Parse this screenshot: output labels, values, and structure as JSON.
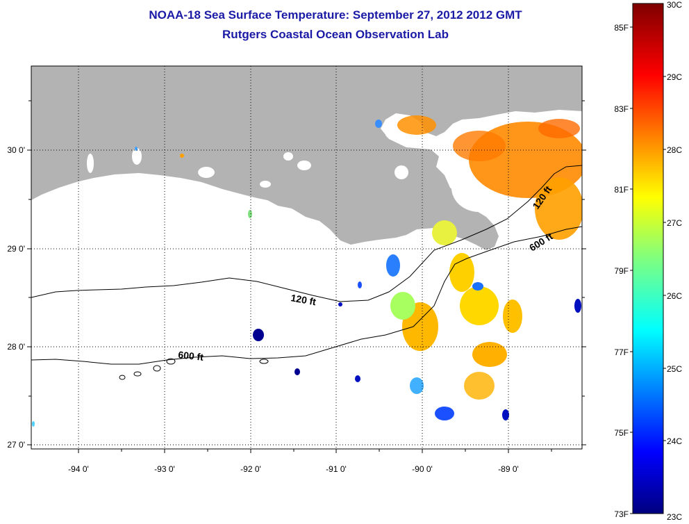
{
  "titles": {
    "line1": "NOAA-18 Sea Surface Temperature:  September 27, 2012 2012 GMT",
    "line2": "Rutgers Coastal Ocean Observation Lab"
  },
  "map": {
    "lat_labels": [
      "30 0'",
      "29 0'",
      "28 0'",
      "27 0'"
    ],
    "lon_labels": [
      "-94 0'",
      "-93 0'",
      "-92 0'",
      "-91 0'",
      "-90 0'",
      "-89 0'"
    ],
    "contours": {
      "shallow_label": "120 ft",
      "deep_label": "600 ft"
    },
    "colors": {
      "land": "#b3b3b3",
      "ocean_nodata": "#ffffff"
    }
  },
  "colorbar": {
    "fahrenheit": [
      "85F",
      "83F",
      "81F",
      "79F",
      "77F",
      "75F",
      "73F"
    ],
    "celsius": [
      "30C",
      "29C",
      "28C",
      "27C",
      "26C",
      "25C",
      "24C",
      "23C"
    ]
  }
}
